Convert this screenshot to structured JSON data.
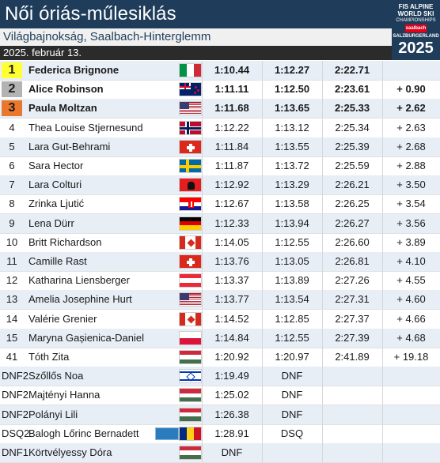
{
  "header": {
    "title": "Női óriás-műlesiklás",
    "subtitle": "Világbajnokság, Saalbach-Hinterglemm",
    "date": "2025. február 13."
  },
  "logo": {
    "line1": "FIS ALPINE",
    "line2": "WORLD SKI",
    "line3": "CHAMPIONSHIPS",
    "badge": "saalbach",
    "line4": "SALZBURGERLAND",
    "year": "2025"
  },
  "colors": {
    "gold": "#ffff33",
    "silver": "#b3b3b3",
    "bronze": "#e9782d",
    "title_bg": "#1f3d5a",
    "row_alt": "#e7eef6"
  },
  "rows": [
    {
      "rank": "1",
      "name": "Federica Brignone",
      "flag": "italy",
      "r1": "1:10.44",
      "r2": "1:12.27",
      "total": "2:22.71",
      "diff": "",
      "medal": "gold"
    },
    {
      "rank": "2",
      "name": "Alice Robinson",
      "flag": "new-zealand",
      "r1": "1:11.11",
      "r2": "1:12.50",
      "total": "2:23.61",
      "diff": "+ 0.90",
      "medal": "silver"
    },
    {
      "rank": "3",
      "name": "Paula Moltzan",
      "flag": "usa",
      "r1": "1:11.68",
      "r2": "1:13.65",
      "total": "2:25.33",
      "diff": "+ 2.62",
      "medal": "bronze"
    },
    {
      "rank": "4",
      "name": "Thea Louise Stjernesund",
      "flag": "norway",
      "r1": "1:12.22",
      "r2": "1:13.12",
      "total": "2:25.34",
      "diff": "+ 2.63"
    },
    {
      "rank": "5",
      "name": "Lara Gut-Behrami",
      "flag": "switzerland",
      "r1": "1:11.84",
      "r2": "1:13.55",
      "total": "2:25.39",
      "diff": "+ 2.68"
    },
    {
      "rank": "6",
      "name": "Sara Hector",
      "flag": "sweden",
      "r1": "1:11.87",
      "r2": "1:13.72",
      "total": "2:25.59",
      "diff": "+ 2.88"
    },
    {
      "rank": "7",
      "name": "Lara Colturi",
      "flag": "albania",
      "r1": "1:12.92",
      "r2": "1:13.29",
      "total": "2:26.21",
      "diff": "+ 3.50"
    },
    {
      "rank": "8",
      "name": "Zrinka Ljutić",
      "flag": "croatia",
      "r1": "1:12.67",
      "r2": "1:13.58",
      "total": "2:26.25",
      "diff": "+ 3.54"
    },
    {
      "rank": "9",
      "name": "Lena Dürr",
      "flag": "germany",
      "r1": "1:12.33",
      "r2": "1:13.94",
      "total": "2:26.27",
      "diff": "+ 3.56"
    },
    {
      "rank": "10",
      "name": "Britt Richardson",
      "flag": "canada",
      "r1": "1:14.05",
      "r2": "1:12.55",
      "total": "2:26.60",
      "diff": "+ 3.89"
    },
    {
      "rank": "11",
      "name": "Camille Rast",
      "flag": "switzerland",
      "r1": "1:13.76",
      "r2": "1:13.05",
      "total": "2:26.81",
      "diff": "+ 4.10"
    },
    {
      "rank": "12",
      "name": "Katharina Liensberger",
      "flag": "austria",
      "r1": "1:13.37",
      "r2": "1:13.89",
      "total": "2:27.26",
      "diff": "+ 4.55"
    },
    {
      "rank": "13",
      "name": "Amelia Josephine Hurt",
      "flag": "usa",
      "r1": "1:13.77",
      "r2": "1:13.54",
      "total": "2:27.31",
      "diff": "+ 4.60"
    },
    {
      "rank": "14",
      "name": "Valérie Grenier",
      "flag": "canada",
      "r1": "1:14.52",
      "r2": "1:12.85",
      "total": "2:27.37",
      "diff": "+ 4.66"
    },
    {
      "rank": "15",
      "name": "Maryna Gașienica-Daniel",
      "flag": "poland",
      "r1": "1:14.84",
      "r2": "1:12.55",
      "total": "2:27.39",
      "diff": "+ 4.68"
    },
    {
      "rank": "41",
      "name": "Tóth Zita",
      "flag": "hungary",
      "r1": "1:20.92",
      "r2": "1:20.97",
      "total": "2:41.89",
      "diff": "+ 19.18"
    },
    {
      "rank": "DNF2",
      "name": "Szőllős Noa",
      "flag": "israel",
      "r1": "1:19.49",
      "r2": "DNF",
      "total": "",
      "diff": ""
    },
    {
      "rank": "DNF2",
      "name": "Majtényi Hanna",
      "flag": "hungary",
      "r1": "1:25.02",
      "r2": "DNF",
      "total": "",
      "diff": ""
    },
    {
      "rank": "DNF2",
      "name": "Polányi Lili",
      "flag": "hungary",
      "r1": "1:26.38",
      "r2": "DNF",
      "total": "",
      "diff": ""
    },
    {
      "rank": "DSQ2",
      "name": "Balogh Lőrinc Bernadett",
      "flag": "romania",
      "r1": "1:28.91",
      "r2": "DSQ",
      "total": "",
      "diff": "",
      "extra_flag": "eu"
    },
    {
      "rank": "DNF1",
      "name": "Körtvélyessy Dóra",
      "flag": "hungary",
      "r1": "DNF",
      "r2": "",
      "total": "",
      "diff": ""
    }
  ]
}
